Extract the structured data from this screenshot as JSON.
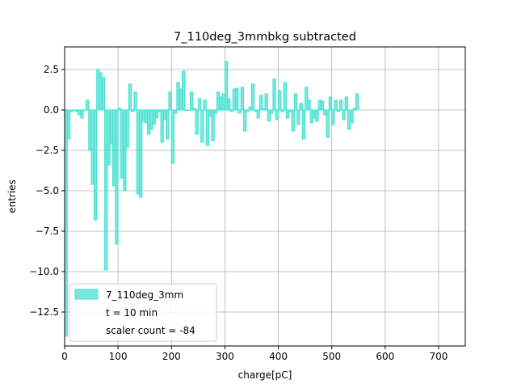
{
  "chart_data": {
    "type": "bar",
    "title": "7_110deg_3mmbkg subtracted",
    "xlabel": "charge[pC]",
    "ylabel": "entries",
    "xlim": [
      0,
      750
    ],
    "ylim": [
      -14.6,
      3.9
    ],
    "xticks": [
      0,
      100,
      200,
      300,
      400,
      500,
      600,
      700
    ],
    "yticks": [
      -12.5,
      -10.0,
      -7.5,
      -5.0,
      -2.5,
      0.0,
      2.5
    ],
    "xtick_labels": [
      "0",
      "100",
      "200",
      "300",
      "400",
      "500",
      "600",
      "700"
    ],
    "ytick_labels": [
      "−12.5",
      "−10.0",
      "−7.5",
      "−5.0",
      "−2.5",
      "0.0",
      "2.5"
    ],
    "grid": true,
    "legend_position": "lower-left",
    "bin_width": 5,
    "bin_start": 0,
    "series": [
      {
        "name": "7_110deg_3mm",
        "color": "#40e0d0",
        "values": [
          -14.0,
          -1.8,
          -0.1,
          0.0,
          -0.1,
          -0.3,
          -0.5,
          0.0,
          0.6,
          -2.5,
          -4.6,
          -6.8,
          2.5,
          2.3,
          2.0,
          -9.9,
          -3.4,
          -2.1,
          -4.7,
          -8.3,
          0.1,
          -4.2,
          -5.0,
          -2.3,
          1.6,
          -0.1,
          1.1,
          -5.2,
          -5.4,
          -0.7,
          -0.8,
          -1.5,
          -1.2,
          -0.9,
          -0.5,
          -0.1,
          -2.0,
          -0.6,
          -1.8,
          1.1,
          -3.3,
          -0.2,
          1.7,
          1.3,
          2.4,
          0.0,
          0.0,
          1.1,
          0.1,
          -1.5,
          0.7,
          -2.0,
          0.6,
          -2.2,
          -0.4,
          -1.9,
          -0.2,
          1.1,
          0.8,
          1.0,
          3.0,
          0.7,
          -0.1,
          1.3,
          1.35,
          -0.2,
          1.4,
          -1.3,
          -0.1,
          0.2,
          1.6,
          -0.1,
          -0.5,
          0.9,
          0.1,
          1.0,
          -0.7,
          -0.2,
          1.9,
          -0.6,
          1.2,
          -0.1,
          1.7,
          -0.5,
          -0.1,
          -1.3,
          1.0,
          -0.9,
          0.4,
          -1.8,
          1.4,
          0.6,
          -0.8,
          -0.5,
          -0.7,
          0.6,
          0.55,
          -0.3,
          -1.7,
          0.8,
          -0.9,
          0.6,
          -0.1,
          0.6,
          -0.6,
          0.8,
          -1.2,
          -0.8,
          0.1,
          1.0
        ]
      }
    ],
    "legend_entries": [
      "7_110deg_3mm",
      "t = 10 min",
      "scaler count = -84"
    ]
  }
}
